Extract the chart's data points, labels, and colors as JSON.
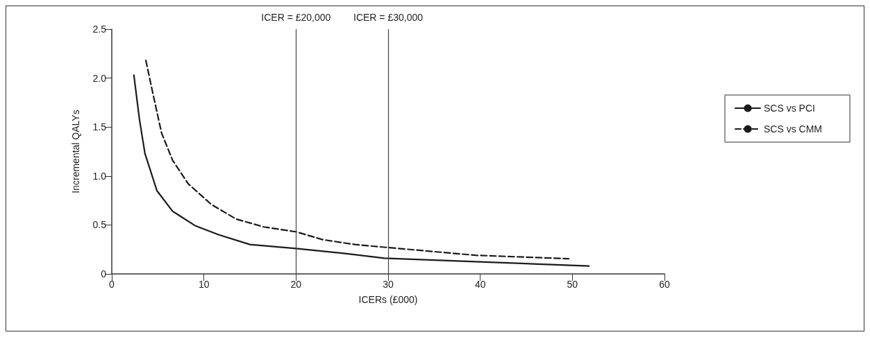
{
  "chart_data": {
    "type": "line",
    "xlabel": "ICERs (£000)",
    "ylabel": "Incremental QALYs",
    "xlim": [
      0,
      60
    ],
    "xticks": [
      0,
      10,
      20,
      30,
      40,
      50,
      60
    ],
    "ylim": [
      0,
      2.5
    ],
    "yticks": [
      0,
      0.5,
      {
        "value": 1,
        "label": "1.0"
      },
      1.5,
      {
        "value": 2,
        "label": "2.0"
      },
      2.5
    ],
    "grid": false,
    "legend": "right",
    "marker": "none",
    "series": [
      {
        "name": "SCS vs PCI",
        "color": "#1a1a1a",
        "line_style": "solid",
        "x": [
          2.4,
          3.0,
          3.6,
          4.9,
          6.6,
          9.1,
          11.6,
          15.0,
          20.0,
          25.2,
          29.6,
          39.5,
          51.8
        ],
        "values": [
          2.03,
          1.58,
          1.23,
          0.85,
          0.64,
          0.49,
          0.4,
          0.3,
          0.26,
          0.21,
          0.16,
          0.125,
          0.08
        ]
      },
      {
        "name": "SCS vs CMM",
        "color": "#1a1a1a",
        "line_style": "dashed",
        "x": [
          3.7,
          4.4,
          5.4,
          6.6,
          8.3,
          10.8,
          13.5,
          16.5,
          20.0,
          22.9,
          26.4,
          29.9,
          39.5,
          49.6
        ],
        "values": [
          2.18,
          1.87,
          1.44,
          1.16,
          0.92,
          0.71,
          0.56,
          0.48,
          0.43,
          0.35,
          0.3,
          0.27,
          0.19,
          0.155
        ]
      }
    ],
    "ref_lines": [
      {
        "axis": "x",
        "value": 20,
        "label": "ICER = £20,000",
        "color": "#444444"
      },
      {
        "axis": "x",
        "value": 30,
        "label": "ICER = £30,000",
        "color": "#444444"
      }
    ]
  }
}
